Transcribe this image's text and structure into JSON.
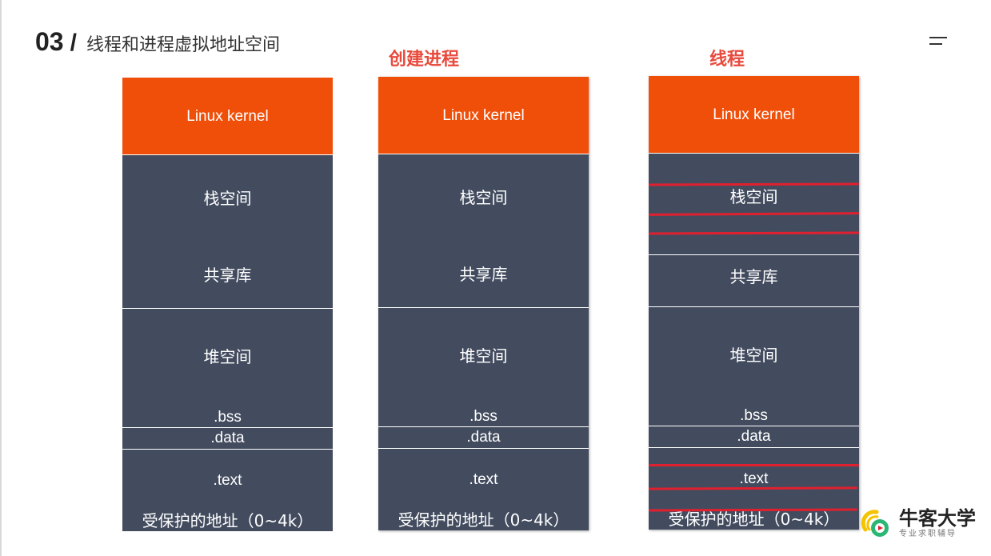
{
  "header": {
    "number": "03",
    "slash": "/",
    "title": "线程和进程虚拟地址空间"
  },
  "columns": [
    {
      "title": "",
      "kernel": "Linux kernel",
      "stack": "栈空间",
      "shared_lib": "共享库",
      "heap": "堆空间",
      "bss": ".bss",
      "data": ".data",
      "text": ".text",
      "protected": "受保护的地址（0~4k）"
    },
    {
      "title": "创建进程",
      "kernel": "Linux kernel",
      "stack": "栈空间",
      "shared_lib": "共享库",
      "heap": "堆空间",
      "bss": ".bss",
      "data": ".data",
      "text": ".text",
      "protected": "受保护的地址（0~4k）"
    },
    {
      "title": "线程",
      "kernel": "Linux kernel",
      "stack": "栈空间",
      "shared_lib": "共享库",
      "heap": "堆空间",
      "bss": ".bss",
      "data": ".data",
      "text": ".text",
      "protected": "受保护的地址（0~4k）"
    }
  ],
  "colors": {
    "kernel": "#f04f0a",
    "segment": "#434c5f",
    "accent_red": "#e84a3c",
    "annotation": "#e0202f"
  },
  "logo": {
    "name": "牛客大学",
    "tagline": "专业求职辅导"
  },
  "icons": {
    "menu": "menu-icon",
    "logo": "nowcoder-logo-icon"
  }
}
